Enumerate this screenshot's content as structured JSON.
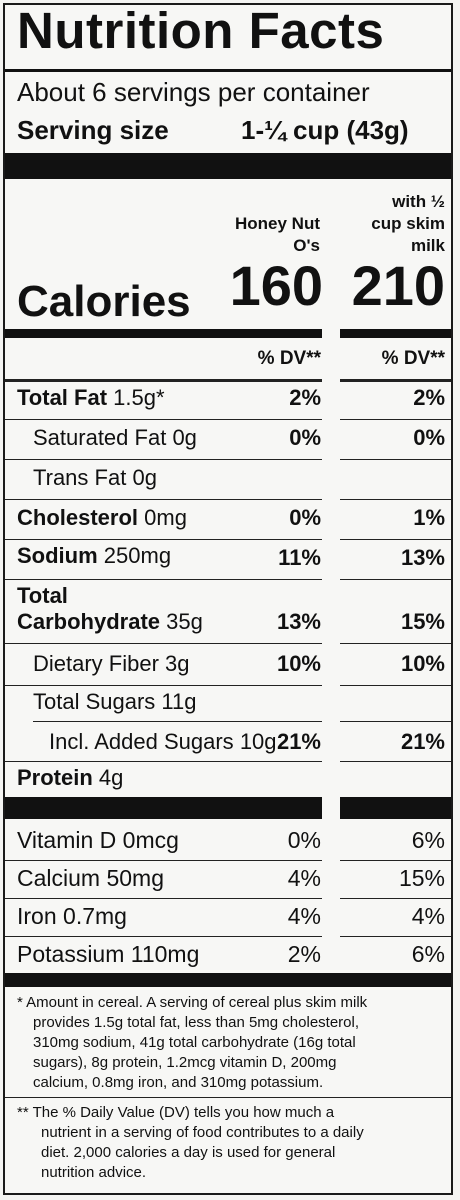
{
  "title": "Nutrition Facts",
  "servings": "About 6 servings per container",
  "serving_size_label": "Serving size",
  "serving_size_value": "1-¼ cup (43g)",
  "col1_header": [
    "Honey Nut",
    "O's"
  ],
  "col2_header": [
    "with ½",
    "cup skim",
    "milk"
  ],
  "calories_label": "Calories",
  "calories_col1": "160",
  "calories_col2": "210",
  "dv_header": "% DV**",
  "nutrients": [
    {
      "name": "Total Fat",
      "amount": "1.5g*",
      "bold": true,
      "dv1": "2%",
      "dv2": "2%"
    },
    {
      "name": "Saturated Fat",
      "amount": "0g",
      "bold": false,
      "dv1": "0%",
      "dv2": "0%"
    },
    {
      "name": "Trans Fat",
      "amount": "0g",
      "bold": false,
      "dv1": "",
      "dv2": ""
    },
    {
      "name": "Cholesterol",
      "amount": "0mg",
      "bold": true,
      "dv1": "0%",
      "dv2": "1%"
    },
    {
      "name": "Sodium",
      "amount": "250mg",
      "bold": true,
      "dv1": "11%",
      "dv2": "13%"
    },
    {
      "name_line1": "Total",
      "name": "Carbohydrate",
      "amount": "35g",
      "bold": true,
      "dv1": "13%",
      "dv2": "15%"
    },
    {
      "name": "Dietary Fiber",
      "amount": "3g",
      "bold": false,
      "dv1": "10%",
      "dv2": "10%"
    },
    {
      "name": "Total Sugars",
      "amount": "11g",
      "bold": false,
      "dv1": "",
      "dv2": ""
    },
    {
      "name": "Incl. Added Sugars",
      "amount": "10g",
      "bold": false,
      "dv1": "21%",
      "dv2": "21%"
    },
    {
      "name": "Protein",
      "amount": "4g",
      "bold": true,
      "dv1": "",
      "dv2": ""
    }
  ],
  "vitamins": [
    {
      "name": "Vitamin D",
      "amount": "0mcg",
      "dv1": "0%",
      "dv2": "6%"
    },
    {
      "name": "Calcium",
      "amount": "50mg",
      "dv1": "4%",
      "dv2": "15%"
    },
    {
      "name": "Iron",
      "amount": "0.7mg",
      "dv1": "4%",
      "dv2": "4%"
    },
    {
      "name": "Potassium",
      "amount": "110mg",
      "dv1": "2%",
      "dv2": "6%"
    }
  ],
  "footnote1": [
    "* Amount in cereal. A serving of cereal plus skim milk",
    "provides 1.5g total fat, less than 5mg cholesterol,",
    "310mg sodium, 41g total carbohydrate (16g total",
    "sugars), 8g protein, 1.2mcg vitamin D, 200mg",
    "calcium, 0.8mg iron, and 310mg potassium."
  ],
  "footnote2": [
    "** The % Daily Value (DV) tells you how much a",
    "nutrient in a serving of food contributes to a daily",
    "diet. 2,000 calories a day is used for general",
    "nutrition advice."
  ]
}
